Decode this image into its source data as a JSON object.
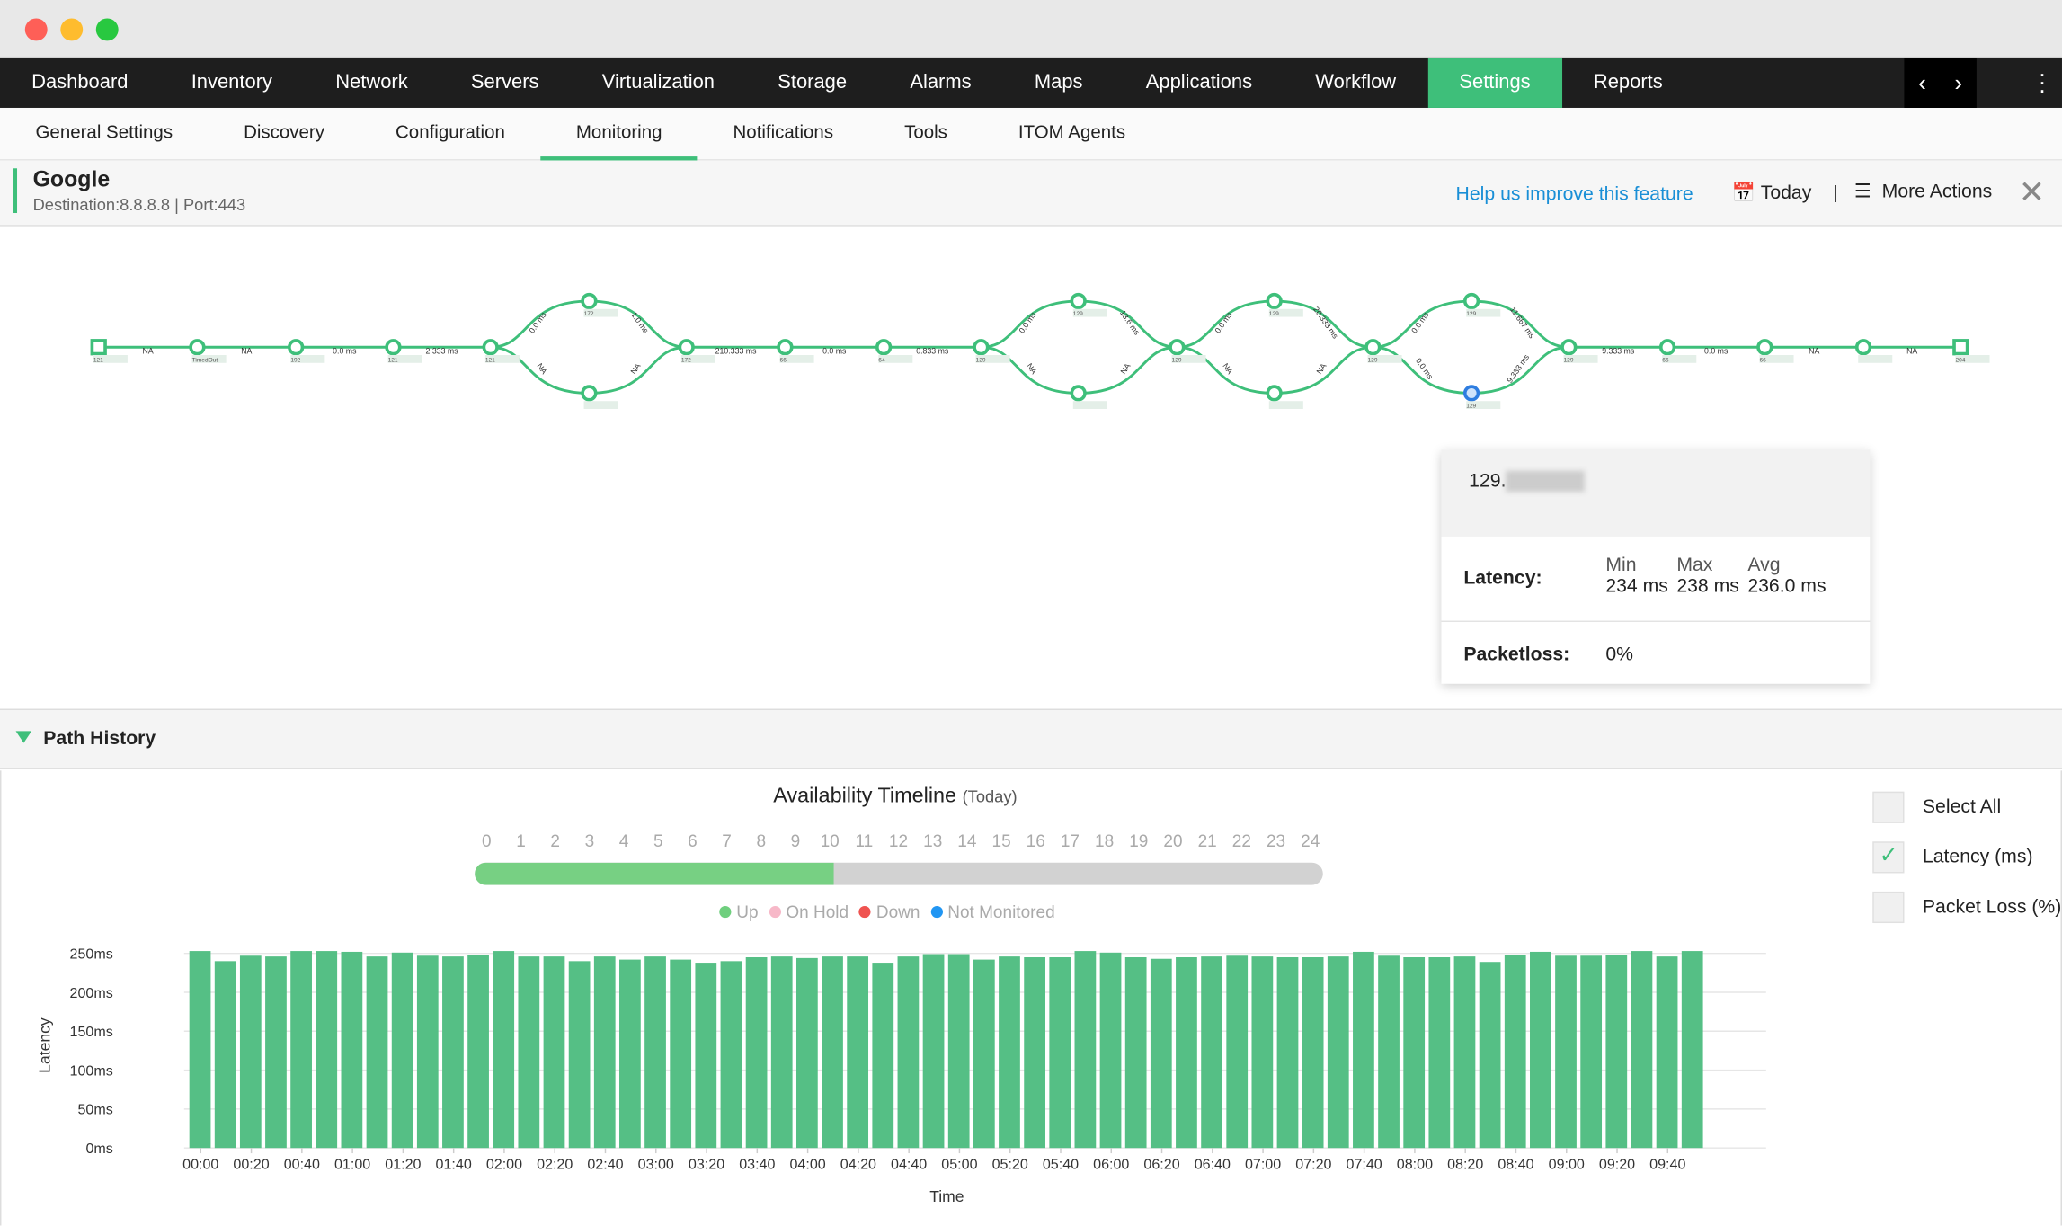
{
  "window": {
    "controls": [
      "close",
      "minimize",
      "maximize"
    ]
  },
  "nav": {
    "items": [
      "Dashboard",
      "Inventory",
      "Network",
      "Servers",
      "Virtualization",
      "Storage",
      "Alarms",
      "Maps",
      "Applications",
      "Workflow",
      "Settings",
      "Reports"
    ],
    "active": "Settings"
  },
  "subnav": {
    "items": [
      "General Settings",
      "Discovery",
      "Configuration",
      "Monitoring",
      "Notifications",
      "Tools",
      "ITOM Agents"
    ],
    "active": "Monitoring"
  },
  "header": {
    "title": "Google",
    "subtitle": "Destination:8.8.8.8 | Port:443",
    "help": "Help us improve this feature",
    "period": "Today",
    "separator": "|",
    "more_actions": "More Actions"
  },
  "path": {
    "nodes": [
      "121",
      "TimedOut",
      "192",
      "121",
      "121",
      "172",
      "",
      "172",
      "66",
      "64",
      "129",
      "129",
      "",
      "129",
      "129",
      "",
      "129",
      "129",
      "129",
      "129",
      "66",
      "66",
      "",
      "204"
    ],
    "edges": [
      "NA",
      "NA",
      "0.0 ms",
      "2.333 ms",
      "0.0 ms",
      "1.0 ms",
      "NA",
      "NA",
      "210.333 ms",
      "0.0 ms",
      "0.833 ms",
      "0.0 ms",
      "13.6 ms",
      "NA",
      "NA",
      "0.0 ms",
      "20.333 ms",
      "NA",
      "NA",
      "0.0 ms",
      "11.667 ms",
      "0.0 ms",
      "9.333 ms",
      "9.333 ms",
      "0.0 ms",
      "NA",
      "NA"
    ],
    "colors": {
      "node": "#3ebf7a",
      "selected": "#2e7de0"
    }
  },
  "tooltip": {
    "ip": "129.",
    "latency_label": "Latency:",
    "min_label": "Min",
    "max_label": "Max",
    "avg_label": "Avg",
    "min": "234 ms",
    "max": "238 ms",
    "avg": "236.0 ms",
    "packetloss_label": "Packetloss:",
    "packetloss": "0%"
  },
  "path_history": {
    "label": "Path History"
  },
  "availability": {
    "title": "Availability Timeline",
    "period": "(Today)",
    "hours": [
      "0",
      "1",
      "2",
      "3",
      "4",
      "5",
      "6",
      "7",
      "8",
      "9",
      "10",
      "11",
      "12",
      "13",
      "14",
      "15",
      "16",
      "17",
      "18",
      "19",
      "20",
      "21",
      "22",
      "23",
      "24"
    ],
    "up_fraction": 0.424,
    "legend": [
      {
        "label": "Up",
        "color": "#6fcf7e"
      },
      {
        "label": "On Hold",
        "color": "#f7b8c8"
      },
      {
        "label": "Down",
        "color": "#ef5350"
      },
      {
        "label": "Not Monitored",
        "color": "#2196f3"
      }
    ]
  },
  "checks": [
    {
      "label": "Select All",
      "checked": false
    },
    {
      "label": "Latency (ms)",
      "checked": true
    },
    {
      "label": "Packet Loss (%)",
      "checked": false
    }
  ],
  "chart_data": {
    "type": "bar",
    "xlabel": "Time",
    "ylabel": "Latency",
    "ylim": [
      0,
      250
    ],
    "yticks": [
      "0ms",
      "50ms",
      "100ms",
      "150ms",
      "200ms",
      "250ms"
    ],
    "color": "#55bf85",
    "grid": true,
    "xtick_labels": [
      "00:00",
      "00:20",
      "00:40",
      "01:00",
      "01:20",
      "01:40",
      "02:00",
      "02:20",
      "02:40",
      "03:00",
      "03:20",
      "03:40",
      "04:00",
      "04:20",
      "04:40",
      "05:00",
      "05:20",
      "05:40",
      "06:00",
      "06:20",
      "06:40",
      "07:00",
      "07:20",
      "07:40",
      "08:00",
      "08:20",
      "08:40",
      "09:00",
      "09:20",
      "09:40"
    ],
    "values": [
      253,
      240,
      247,
      246,
      253,
      253,
      252,
      246,
      251,
      247,
      246,
      248,
      253,
      246,
      246,
      240,
      246,
      242,
      246,
      242,
      238,
      240,
      245,
      246,
      244,
      246,
      246,
      238,
      246,
      249,
      249,
      242,
      246,
      245,
      245,
      253,
      251,
      245,
      243,
      245,
      246,
      247,
      246,
      245,
      245,
      246,
      252,
      247,
      245,
      245,
      246,
      239,
      248,
      252,
      247,
      247,
      248,
      253,
      246,
      253
    ]
  }
}
